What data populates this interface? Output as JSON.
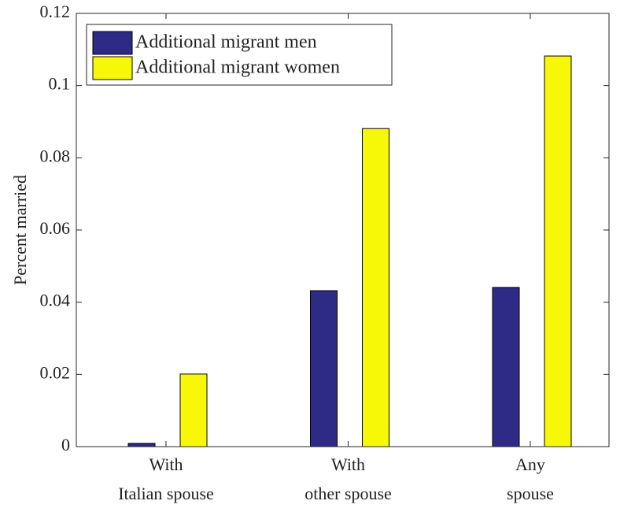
{
  "chart_data": {
    "type": "bar",
    "y_label": "Percent married",
    "categories": [
      [
        "With",
        "Italian spouse"
      ],
      [
        "With",
        "other spouse"
      ],
      [
        "Any",
        "spouse"
      ]
    ],
    "series": [
      {
        "name": "Additional migrant men",
        "color": "#2e2b86",
        "values": [
          0.0009,
          0.0432,
          0.0441
        ]
      },
      {
        "name": "Additional migrant women",
        "color": "#f7f708",
        "values": [
          0.0201,
          0.0881,
          0.1082
        ]
      }
    ],
    "ylim": [
      0,
      0.12
    ],
    "yticks": [
      0,
      0.02,
      0.04,
      0.06,
      0.08,
      0.1,
      0.12
    ],
    "grid": false,
    "legend": "upper-left"
  }
}
